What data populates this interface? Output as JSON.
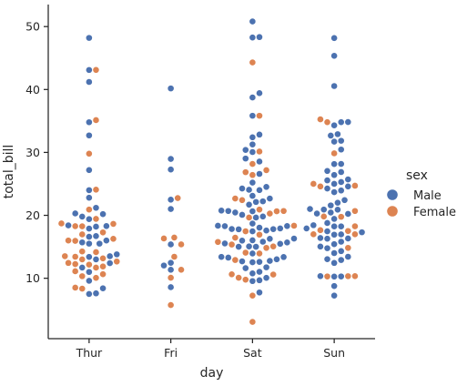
{
  "chart_data": {
    "type": "scatter",
    "subtype": "swarm",
    "xlabel": "day",
    "ylabel": "total_bill",
    "categories": [
      "Thur",
      "Fri",
      "Sat",
      "Sun"
    ],
    "ylim": [
      0.4,
      53.5
    ],
    "yticks": [
      10,
      20,
      30,
      40,
      50
    ],
    "grid": false,
    "legend": {
      "title": "sex",
      "placement": "right",
      "entries": [
        {
          "name": "Male",
          "color": "#4c72b0"
        },
        {
          "name": "Female",
          "color": "#dd8452"
        }
      ]
    },
    "series": [
      {
        "name": "Male",
        "color": "#4c72b0",
        "points": {
          "Thur": [
            27.2,
            22.8,
            19.4,
            48.2,
            20.3,
            13.8,
            11.7,
            11.0,
            18.3,
            15.7,
            24.0,
            18.4,
            16.7,
            43.1,
            13.0,
            7.5,
            8.4,
            16.0,
            32.7,
            34.8,
            41.2,
            15.5,
            9.6,
            13.4,
            7.6,
            21.2,
            19.8,
            16.6,
            18.2,
            20.2,
            15.5,
            13.5,
            17.9,
            12.4
          ],
          "Fri": [
            28.97,
            22.49,
            40.17,
            27.28,
            12.03,
            21.01,
            12.46,
            11.35,
            15.38,
            8.58
          ],
          "Sat": [
            20.65,
            17.92,
            39.42,
            19.82,
            17.81,
            13.37,
            12.69,
            21.7,
            19.65,
            9.55,
            18.35,
            15.06,
            20.69,
            17.78,
            24.06,
            16.31,
            18.69,
            31.27,
            16.04,
            17.46,
            13.94,
            9.68,
            30.4,
            18.29,
            22.23,
            32.4,
            28.55,
            18.04,
            12.54,
            48.27,
            20.45,
            13.28,
            24.01,
            15.69,
            11.61,
            10.77,
            15.53,
            10.07,
            12.6,
            32.83,
            35.83,
            29.03,
            22.67,
            17.82,
            48.33,
            20.08,
            16.27,
            11.02,
            18.28,
            24.52,
            23.1,
            15.81,
            26.59,
            38.73,
            24.27,
            12.76,
            30.06,
            25.21,
            22.12,
            50.81,
            15.48,
            11.74,
            20.76,
            15.01,
            13.01,
            17.59,
            15.98,
            7.74,
            13.39,
            15.0
          ],
          "Sun": [
            10.34,
            21.01,
            23.68,
            25.29,
            8.77,
            26.88,
            15.04,
            14.78,
            10.27,
            15.42,
            18.43,
            21.58,
            16.29,
            17.46,
            34.81,
            25.0,
            10.29,
            34.83,
            32.68,
            31.71,
            20.29,
            16.97,
            20.9,
            25.71,
            30.46,
            18.24,
            48.17,
            25.56,
            16.32,
            34.3,
            20.23,
            17.31,
            18.24,
            16.93,
            22.42,
            20.92,
            24.59,
            28.17,
            12.9,
            13.42,
            14.31,
            19.44,
            22.0,
            20.45,
            17.92,
            12.43,
            18.78,
            24.27,
            13.03,
            14.0,
            23.95,
            27.05,
            16.4,
            15.81,
            45.35,
            40.55,
            26.41,
            31.85,
            7.25,
            32.9,
            28.15
          ]
        }
      },
      {
        "name": "Female",
        "color": "#dd8452",
        "points": {
          "Thur": [
            10.07,
            16.97,
            16.0,
            13.0,
            18.71,
            12.66,
            8.35,
            18.64,
            11.87,
            20.92,
            18.26,
            8.51,
            10.33,
            14.15,
            16.27,
            10.65,
            12.43,
            24.08,
            11.69,
            13.42,
            14.26,
            13.51,
            15.95,
            12.26,
            18.28,
            19.44,
            29.8,
            35.13,
            17.29,
            43.11,
            13.16,
            12.16,
            11.11
          ],
          "Fri": [
            5.75,
            16.32,
            22.75,
            11.35,
            15.38,
            13.42,
            16.47,
            10.09
          ],
          "Sat": [
            20.29,
            15.77,
            19.65,
            15.06,
            20.69,
            16.93,
            26.41,
            16.45,
            3.07,
            10.09,
            14.07,
            20.65,
            18.35,
            10.63,
            12.9,
            14.83,
            44.3,
            22.42,
            13.94,
            9.78,
            20.92,
            15.36,
            17.47,
            7.25,
            10.59,
            28.17,
            27.18,
            22.67,
            30.14,
            35.83,
            26.86
          ],
          "Sun": [
            16.99,
            24.59,
            35.26,
            14.83,
            10.33,
            16.99,
            29.85,
            25.0,
            10.29,
            34.81,
            19.77,
            17.51,
            18.26,
            24.71,
            10.34,
            17.64,
            20.69,
            19.81
          ]
        }
      }
    ]
  }
}
